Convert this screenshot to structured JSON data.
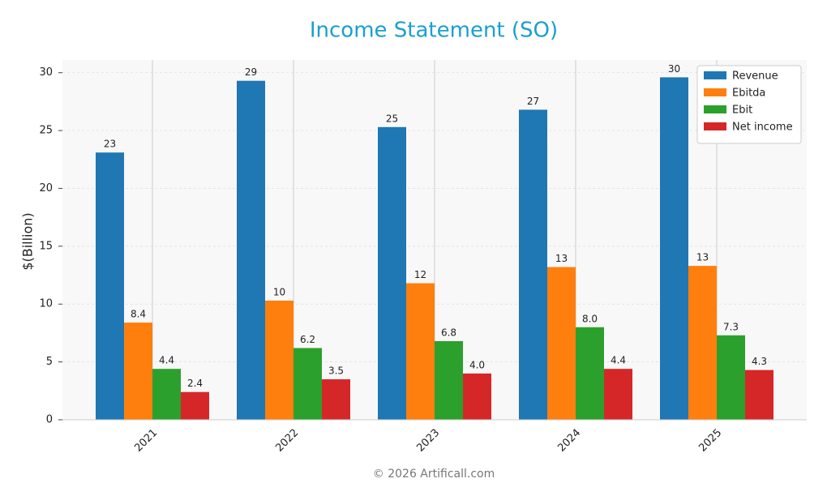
{
  "chart_data": {
    "type": "bar",
    "title": "Income Statement (SO)",
    "y_label": "$(Billion)",
    "footer": "© 2026 Artificall.com",
    "categories": [
      "2021",
      "2022",
      "2023",
      "2024",
      "2025"
    ],
    "series": [
      {
        "name": "Revenue",
        "color": "#1f77b4",
        "values": [
          23.1,
          29.3,
          25.3,
          26.8,
          29.6
        ],
        "value_labels": [
          "23",
          "29",
          "25",
          "27",
          "30"
        ]
      },
      {
        "name": "Ebitda",
        "color": "#ff7f0e",
        "values": [
          8.4,
          10.3,
          11.8,
          13.2,
          13.3
        ],
        "value_labels": [
          "8.4",
          "10",
          "12",
          "13",
          "13"
        ]
      },
      {
        "name": "Ebit",
        "color": "#2ca02c",
        "values": [
          4.4,
          6.2,
          6.8,
          8.0,
          7.3
        ],
        "value_labels": [
          "4.4",
          "6.2",
          "6.8",
          "8.0",
          "7.3"
        ]
      },
      {
        "name": "Net income",
        "color": "#d62728",
        "values": [
          2.4,
          3.5,
          4.0,
          4.4,
          4.3
        ],
        "value_labels": [
          "2.4",
          "3.5",
          "4.0",
          "4.4",
          "4.3"
        ]
      }
    ],
    "ylim": [
      0,
      31.1
    ],
    "yticks": [
      0,
      5,
      10,
      15,
      20,
      25,
      30
    ],
    "grid": true,
    "legend": "upper right"
  }
}
